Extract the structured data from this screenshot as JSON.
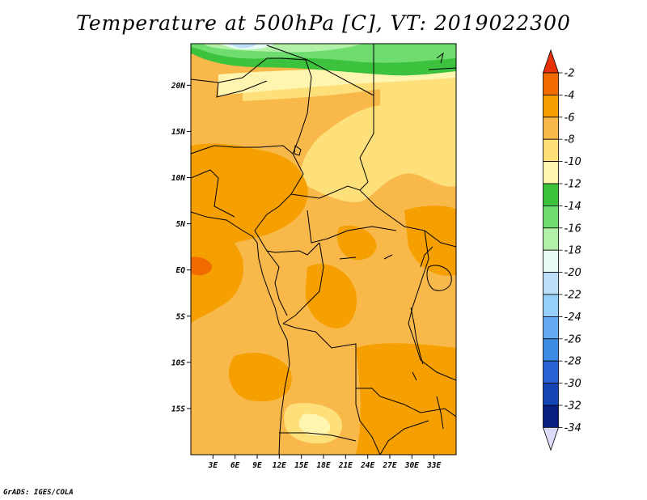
{
  "title": "Temperature at 500hPa [C], VT: 2019022300",
  "credit": "GrADS: IGES/COLA",
  "map": {
    "lon_range": [
      0,
      36
    ],
    "lat_range": [
      -20,
      24.5
    ],
    "lat_ticks": [
      {
        "value": 20,
        "label": "20N"
      },
      {
        "value": 15,
        "label": "15N"
      },
      {
        "value": 10,
        "label": "10N"
      },
      {
        "value": 5,
        "label": "5N"
      },
      {
        "value": 0,
        "label": "EQ"
      },
      {
        "value": -5,
        "label": "5S"
      },
      {
        "value": -10,
        "label": "10S"
      },
      {
        "value": -15,
        "label": "15S"
      }
    ],
    "lon_ticks": [
      {
        "value": 3,
        "label": "3E"
      },
      {
        "value": 6,
        "label": "6E"
      },
      {
        "value": 9,
        "label": "9E"
      },
      {
        "value": 12,
        "label": "12E"
      },
      {
        "value": 15,
        "label": "15E"
      },
      {
        "value": 18,
        "label": "18E"
      },
      {
        "value": 21,
        "label": "21E"
      },
      {
        "value": 24,
        "label": "24E"
      },
      {
        "value": 27,
        "label": "27E"
      },
      {
        "value": 30,
        "label": "30E"
      },
      {
        "value": 33,
        "label": "33E"
      }
    ]
  },
  "colorbar": {
    "labels": [
      "-2",
      "-4",
      "-6",
      "-8",
      "-10",
      "-12",
      "-14",
      "-16",
      "-18",
      "-20",
      "-22",
      "-24",
      "-26",
      "-28",
      "-30",
      "-32",
      "-34"
    ],
    "colors": [
      "#e8320a",
      "#f06a00",
      "#f5a000",
      "#f8b84a",
      "#fde07a",
      "#fef5b0",
      "#3cc23c",
      "#6fdc6f",
      "#b2f0a8",
      "#e6fbf4",
      "#bce0f8",
      "#96d0f8",
      "#64aaf0",
      "#3c8ce6",
      "#2864d4",
      "#1446b8",
      "#0a1e82",
      "#120a5a",
      "#dcdcf8"
    ]
  }
}
